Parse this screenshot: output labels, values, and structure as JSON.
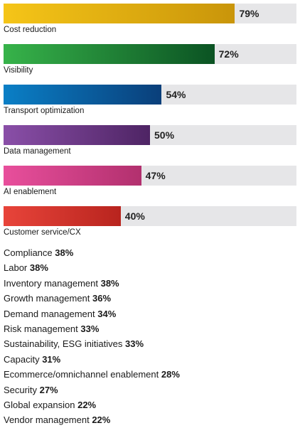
{
  "chart_data": {
    "type": "bar",
    "orientation": "horizontal",
    "xlim": [
      0,
      100
    ],
    "unit": "%",
    "bars": [
      {
        "label": "Cost reduction",
        "value": 79,
        "value_label": "79%",
        "color_start": "#f5c518",
        "color_end": "#c9950a"
      },
      {
        "label": "Visibility",
        "value": 72,
        "value_label": "72%",
        "color_start": "#37b34a",
        "color_end": "#0b5323"
      },
      {
        "label": "Transport optimization",
        "value": 54,
        "value_label": "54%",
        "color_start": "#0a7fc6",
        "color_end": "#0a3f7a"
      },
      {
        "label": "Data management",
        "value": 50,
        "value_label": "50%",
        "color_start": "#8a4fa8",
        "color_end": "#4e2464"
      },
      {
        "label": "AI enablement",
        "value": 47,
        "value_label": "47%",
        "color_start": "#e84f9c",
        "color_end": "#b2306e"
      },
      {
        "label": "Customer service/CX",
        "value": 40,
        "value_label": "40%",
        "color_start": "#e8443a",
        "color_end": "#b8241e"
      }
    ],
    "other": [
      {
        "label": "Compliance",
        "value": 38,
        "value_label": "38%"
      },
      {
        "label": "Labor",
        "value": 38,
        "value_label": "38%"
      },
      {
        "label": "Inventory management",
        "value": 38,
        "value_label": "38%"
      },
      {
        "label": "Growth management",
        "value": 36,
        "value_label": "36%"
      },
      {
        "label": "Demand management",
        "value": 34,
        "value_label": "34%"
      },
      {
        "label": "Risk management",
        "value": 33,
        "value_label": "33%"
      },
      {
        "label": "Sustainability, ESG initiatives",
        "value": 33,
        "value_label": "33%"
      },
      {
        "label": "Capacity",
        "value": 31,
        "value_label": "31%"
      },
      {
        "label": "Ecommerce/omnichannel enablement",
        "value": 28,
        "value_label": "28%"
      },
      {
        "label": "Security",
        "value": 27,
        "value_label": "27%"
      },
      {
        "label": "Global expansion",
        "value": 22,
        "value_label": "22%"
      },
      {
        "label": "Vendor management",
        "value": 22,
        "value_label": "22%"
      }
    ]
  }
}
